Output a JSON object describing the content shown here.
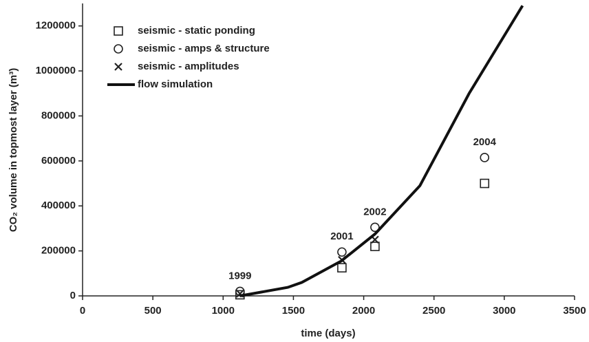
{
  "chart_data": {
    "type": "scatter",
    "xlabel": "time (days)",
    "ylabel": "CO₂ volume in topmost layer (m³)",
    "xlim": [
      0,
      3500
    ],
    "xticks": [
      0,
      500,
      1000,
      1500,
      2000,
      2500,
      3000,
      3500
    ],
    "ylim": [
      0,
      1300000
    ],
    "yticks": [
      0,
      200000,
      400000,
      600000,
      800000,
      1000000,
      1200000
    ],
    "grid": false,
    "legend": "upper left",
    "series": [
      {
        "name": "seismic - static ponding",
        "type": "scatter",
        "marker": "square",
        "color": "#222222",
        "x": [
          1120,
          1845,
          2080,
          2860
        ],
        "values": [
          5000,
          125000,
          220000,
          500000
        ]
      },
      {
        "name": "seismic - amps & structure",
        "type": "scatter",
        "marker": "circle",
        "color": "#222222",
        "x": [
          1120,
          1845,
          2080,
          2860
        ],
        "values": [
          20000,
          195000,
          305000,
          615000
        ]
      },
      {
        "name": "seismic - amplitudes",
        "type": "scatter",
        "marker": "x",
        "color": "#222222",
        "x": [
          1120,
          1845,
          2080
        ],
        "values": [
          10000,
          160000,
          250000
        ]
      },
      {
        "name": "flow simulation",
        "type": "line",
        "color": "#111111",
        "x": [
          1120,
          1460,
          1560,
          1840,
          2080,
          2400,
          2750,
          3130
        ],
        "values": [
          0,
          38000,
          60000,
          155000,
          275000,
          490000,
          900000,
          1290000
        ]
      }
    ],
    "annotations": [
      {
        "text": "1999",
        "x": 1120,
        "y": 20000
      },
      {
        "text": "2001",
        "x": 1845,
        "y": 195000
      },
      {
        "text": "2002",
        "x": 2080,
        "y": 305000
      },
      {
        "text": "2004",
        "x": 2860,
        "y": 615000
      }
    ]
  }
}
